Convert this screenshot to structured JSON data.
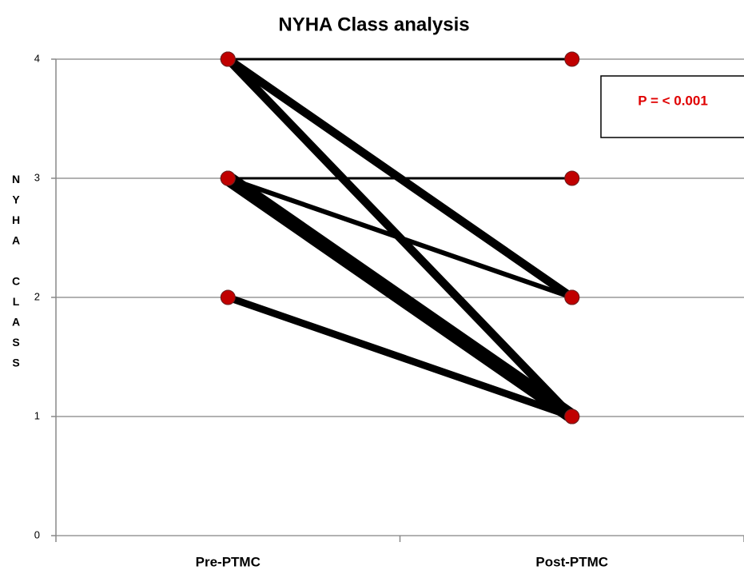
{
  "chart_data": {
    "type": "slope",
    "title": "NYHA Class analysis",
    "ylabel": "NYHA CLASS",
    "categories": [
      "Pre-PTMC",
      "Post-PTMC"
    ],
    "ylim": [
      0,
      4
    ],
    "yticks": [
      0,
      1,
      2,
      3,
      4
    ],
    "grid": true,
    "line_color": "#000000",
    "point_color": "#c00000",
    "annotation": "P = < 0.001",
    "series": [
      {
        "values": [
          4,
          4
        ],
        "weight": 1
      },
      {
        "values": [
          4,
          2
        ],
        "weight": 3.5
      },
      {
        "values": [
          4,
          1
        ],
        "weight": 3.5
      },
      {
        "values": [
          3,
          3
        ],
        "weight": 1
      },
      {
        "values": [
          3,
          2
        ],
        "weight": 2
      },
      {
        "values": [
          3,
          1
        ],
        "weight": 6
      },
      {
        "values": [
          2,
          1
        ],
        "weight": 3
      }
    ]
  }
}
